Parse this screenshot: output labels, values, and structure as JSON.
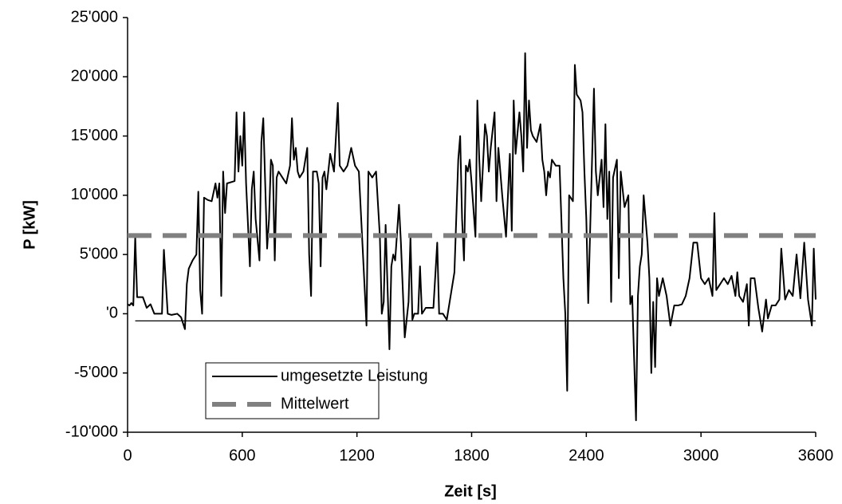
{
  "chart_data": {
    "type": "line",
    "xlabel": "Zeit [s]",
    "ylabel": "P [kW]",
    "xlim": [
      0,
      3600
    ],
    "xticks": [
      0,
      600,
      1200,
      1800,
      2400,
      3000,
      3600
    ],
    "ylim": [
      -10000,
      25000
    ],
    "yticks": [
      {
        "value": -10000,
        "label": "-10'000"
      },
      {
        "value": -5000,
        "label": "-5'000"
      },
      {
        "value": 0,
        "label": "'0"
      },
      {
        "value": 5000,
        "label": "5'000"
      },
      {
        "value": 10000,
        "label": "10'000"
      },
      {
        "value": 15000,
        "label": "15'000"
      },
      {
        "value": 20000,
        "label": "20'000"
      },
      {
        "value": 25000,
        "label": "25'000"
      }
    ],
    "legend": "lower left",
    "series": [
      {
        "name": "umgesetzte Leistung",
        "color": "#000000",
        "style": "solid",
        "x": [
          0,
          10,
          20,
          30,
          40,
          50,
          60,
          80,
          100,
          120,
          140,
          160,
          180,
          190,
          210,
          230,
          260,
          280,
          300,
          310,
          320,
          340,
          360,
          370,
          380,
          390,
          400,
          420,
          440,
          460,
          470,
          480,
          490,
          500,
          510,
          520,
          560,
          570,
          580,
          590,
          600,
          610,
          620,
          640,
          650,
          660,
          670,
          690,
          700,
          710,
          720,
          730,
          740,
          750,
          760,
          770,
          780,
          790,
          810,
          830,
          850,
          860,
          870,
          880,
          890,
          900,
          920,
          940,
          950,
          960,
          970,
          990,
          1000,
          1010,
          1020,
          1030,
          1040,
          1060,
          1080,
          1100,
          1110,
          1130,
          1150,
          1170,
          1190,
          1210,
          1230,
          1250,
          1260,
          1280,
          1300,
          1320,
          1330,
          1340,
          1350,
          1370,
          1380,
          1390,
          1400,
          1420,
          1430,
          1450,
          1470,
          1480,
          1490,
          1500,
          1520,
          1530,
          1540,
          1560,
          1600,
          1620,
          1630,
          1650,
          1670,
          1690,
          1710,
          1730,
          1740,
          1750,
          1760,
          1770,
          1780,
          1790,
          1800,
          1820,
          1830,
          1840,
          1850,
          1870,
          1880,
          1890,
          1900,
          1920,
          1930,
          1940,
          1960,
          1980,
          2000,
          2010,
          2020,
          2030,
          2050,
          2060,
          2070,
          2080,
          2090,
          2100,
          2110,
          2120,
          2140,
          2160,
          2170,
          2180,
          2190,
          2200,
          2210,
          2220,
          2240,
          2260,
          2280,
          2290,
          2300,
          2310,
          2330,
          2340,
          2350,
          2370,
          2380,
          2390,
          2400,
          2410,
          2420,
          2430,
          2440,
          2450,
          2460,
          2480,
          2490,
          2500,
          2510,
          2520,
          2530,
          2540,
          2560,
          2570,
          2580,
          2600,
          2620,
          2630,
          2640,
          2660,
          2670,
          2680,
          2690,
          2700,
          2720,
          2730,
          2740,
          2750,
          2760,
          2770,
          2780,
          2800,
          2820,
          2840,
          2860,
          2880,
          2900,
          2920,
          2940,
          2960,
          2980,
          3000,
          3020,
          3040,
          3060,
          3070,
          3080,
          3100,
          3120,
          3140,
          3160,
          3180,
          3190,
          3200,
          3220,
          3240,
          3250,
          3260,
          3280,
          3300,
          3320,
          3340,
          3350,
          3370,
          3390,
          3410,
          3420,
          3440,
          3460,
          3480,
          3500,
          3520,
          3540,
          3560,
          3580,
          3590,
          3600
        ],
        "values": [
          800,
          700,
          900,
          700,
          6500,
          1400,
          1400,
          1400,
          500,
          800,
          0,
          0,
          0,
          5400,
          0,
          -100,
          0,
          -300,
          -1300,
          2500,
          3800,
          4500,
          5000,
          10300,
          2000,
          0,
          9800,
          9600,
          9500,
          11000,
          9800,
          11000,
          1500,
          12000,
          8500,
          11000,
          11200,
          17000,
          12000,
          15000,
          12500,
          17000,
          11000,
          4000,
          10500,
          12000,
          8000,
          4500,
          14500,
          16500,
          11000,
          5500,
          8000,
          13000,
          12500,
          4500,
          11500,
          12000,
          11500,
          11000,
          12500,
          16500,
          13000,
          14000,
          12000,
          11500,
          12000,
          14000,
          5000,
          1500,
          12000,
          12000,
          11000,
          4000,
          11500,
          12000,
          10500,
          13500,
          12000,
          17800,
          12500,
          12000,
          12500,
          14000,
          12500,
          12000,
          5500,
          -1000,
          12000,
          11500,
          12000,
          6500,
          0,
          1000,
          7500,
          -3000,
          4000,
          5000,
          4500,
          9200,
          6000,
          -2000,
          1000,
          6500,
          -500,
          0,
          0,
          4000,
          0,
          500,
          500,
          6000,
          0,
          0,
          -500,
          1500,
          3500,
          13000,
          15000,
          8000,
          4500,
          12500,
          12000,
          13000,
          11000,
          6500,
          18000,
          13000,
          9500,
          16000,
          15000,
          12000,
          14000,
          17000,
          9500,
          14000,
          10000,
          6500,
          13500,
          7000,
          18000,
          13500,
          17000,
          15000,
          12000,
          22000,
          14000,
          18000,
          15500,
          15000,
          14500,
          16000,
          13000,
          12000,
          10000,
          12000,
          11500,
          13000,
          12500,
          12500,
          3000,
          0,
          -6500,
          10000,
          9500,
          21000,
          18500,
          18000,
          17000,
          12000,
          8000,
          900,
          7000,
          13000,
          19000,
          12000,
          10000,
          13000,
          9000,
          16000,
          8000,
          12000,
          1000,
          11500,
          13000,
          3000,
          12000,
          9000,
          10000,
          800,
          1500,
          -9000,
          1500,
          4000,
          5000,
          10000,
          6000,
          3000,
          -5000,
          1000,
          -4500,
          3000,
          1500,
          3000,
          1500,
          -1000,
          700,
          700,
          800,
          1500,
          3000,
          6000,
          6000,
          3000,
          2500,
          3000,
          1500,
          8500,
          2000,
          2500,
          3000,
          2500,
          3200,
          1500,
          3500,
          1500,
          1000,
          2500,
          -1000,
          3000,
          3000,
          500,
          -1500,
          1200,
          -400,
          700,
          700,
          1200,
          5500,
          1200,
          2000,
          1500,
          5000,
          1300,
          6000,
          1200,
          -1000,
          5500,
          1200
        ]
      },
      {
        "name": "Mittelwert",
        "color": "#808080",
        "style": "dashed",
        "x": [
          0,
          3600
        ],
        "values": [
          6600,
          6600
        ]
      },
      {
        "color": "#000000",
        "style": "thin",
        "x": [
          40,
          3600
        ],
        "values": [
          -600,
          -600
        ]
      }
    ]
  }
}
